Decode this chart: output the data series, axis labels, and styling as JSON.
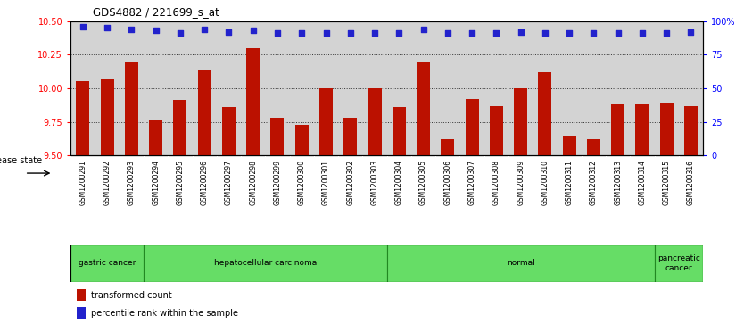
{
  "title": "GDS4882 / 221699_s_at",
  "samples": [
    "GSM1200291",
    "GSM1200292",
    "GSM1200293",
    "GSM1200294",
    "GSM1200295",
    "GSM1200296",
    "GSM1200297",
    "GSM1200298",
    "GSM1200299",
    "GSM1200300",
    "GSM1200301",
    "GSM1200302",
    "GSM1200303",
    "GSM1200304",
    "GSM1200305",
    "GSM1200306",
    "GSM1200307",
    "GSM1200308",
    "GSM1200309",
    "GSM1200310",
    "GSM1200311",
    "GSM1200312",
    "GSM1200313",
    "GSM1200314",
    "GSM1200315",
    "GSM1200316"
  ],
  "transformed_count": [
    10.05,
    10.07,
    10.2,
    9.76,
    9.91,
    10.14,
    9.86,
    10.3,
    9.78,
    9.73,
    10.0,
    9.78,
    10.0,
    9.86,
    10.19,
    9.62,
    9.92,
    9.87,
    10.0,
    10.12,
    9.65,
    9.62,
    9.88,
    9.88,
    9.89,
    9.87
  ],
  "percentile_rank": [
    96,
    95,
    94,
    93,
    91,
    94,
    92,
    93,
    91,
    91,
    91,
    91,
    91,
    91,
    94,
    91,
    91,
    91,
    92,
    91,
    91,
    91,
    91,
    91,
    91,
    92
  ],
  "ylim_left": [
    9.5,
    10.5
  ],
  "ylim_right": [
    0,
    100
  ],
  "yticks_left": [
    9.5,
    9.75,
    10.0,
    10.25,
    10.5
  ],
  "yticks_right": [
    0,
    25,
    50,
    75,
    100
  ],
  "ytick_labels_right": [
    "0",
    "25",
    "50",
    "75",
    "100%"
  ],
  "disease_groups": [
    {
      "label": "gastric cancer",
      "start": 0,
      "end": 2
    },
    {
      "label": "hepatocellular carcinoma",
      "start": 3,
      "end": 12
    },
    {
      "label": "normal",
      "start": 13,
      "end": 23
    },
    {
      "label": "pancreatic\ncancer",
      "start": 24,
      "end": 25
    }
  ],
  "bar_color": "#BB1100",
  "dot_color": "#2222CC",
  "plot_bg_color": "#D3D3D3",
  "xtick_bg_color": "#C8C8C8",
  "disease_bg_color": "#66DD66",
  "disease_border_color": "#228822",
  "legend_bar_label": "transformed count",
  "legend_dot_label": "percentile rank within the sample",
  "grid_color": "#333333",
  "grid_linestyle": ":",
  "grid_linewidth": 0.7,
  "ytick_left_color": "red",
  "ytick_right_color": "blue"
}
